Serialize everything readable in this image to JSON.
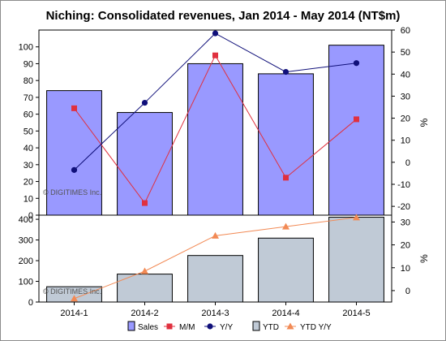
{
  "title": "Niching: Consolidated revenues, Jan 2014 - May 2014 (NT$m)",
  "watermark": "© DIGITIMES Inc.",
  "colors": {
    "sales_bar": "#9999ff",
    "ytd_bar": "#c0cad6",
    "mom": "#e0303f",
    "yoy": "#10107a",
    "ytd_yoy": "#f28a55",
    "frame": "#000000"
  },
  "chart_data": [
    {
      "type": "bar",
      "categories": [
        "2014-1",
        "2014-2",
        "2014-3",
        "2014-4",
        "2014-5"
      ],
      "y_left": {
        "lim": [
          0,
          110
        ],
        "ticks": [
          0,
          10,
          20,
          30,
          40,
          50,
          60,
          70,
          80,
          90,
          100
        ]
      },
      "y_right": {
        "label": "%",
        "lim": [
          -24,
          60
        ],
        "ticks": [
          -20,
          -10,
          0,
          10,
          20,
          30,
          40,
          50,
          60
        ]
      },
      "series": [
        {
          "name": "Sales",
          "kind": "bar",
          "axis": "left",
          "values": [
            74,
            61,
            90,
            84,
            101
          ]
        },
        {
          "name": "M/M",
          "kind": "line",
          "marker": "square",
          "axis": "right",
          "values": [
            24.5,
            -18.5,
            48.5,
            -7,
            19.5
          ]
        },
        {
          "name": "Y/Y",
          "kind": "line",
          "marker": "circle",
          "axis": "right",
          "values": [
            -3.5,
            27,
            58.5,
            41,
            45
          ]
        }
      ]
    },
    {
      "type": "bar",
      "categories": [
        "2014-1",
        "2014-2",
        "2014-3",
        "2014-4",
        "2014-5"
      ],
      "y_left": {
        "lim": [
          0,
          420
        ],
        "ticks": [
          0,
          100,
          200,
          300,
          400
        ]
      },
      "y_right": {
        "label": "%",
        "lim": [
          -5,
          33
        ],
        "ticks": [
          0,
          10,
          20,
          30
        ]
      },
      "series": [
        {
          "name": "YTD",
          "kind": "bar",
          "axis": "left",
          "values": [
            74,
            135,
            225,
            309,
            410
          ]
        },
        {
          "name": "YTD Y/Y",
          "kind": "line",
          "marker": "triangle",
          "axis": "right",
          "values": [
            -3.5,
            8.5,
            24,
            28,
            32
          ]
        }
      ]
    }
  ],
  "legend": [
    {
      "name": "Sales",
      "marker": "box",
      "color_key": "sales_bar"
    },
    {
      "name": "M/M",
      "marker": "square",
      "color_key": "mom"
    },
    {
      "name": "Y/Y",
      "marker": "circle",
      "color_key": "yoy"
    },
    {
      "name": "YTD",
      "marker": "box",
      "color_key": "ytd_bar"
    },
    {
      "name": "YTD Y/Y",
      "marker": "triangle",
      "color_key": "ytd_yoy"
    }
  ]
}
